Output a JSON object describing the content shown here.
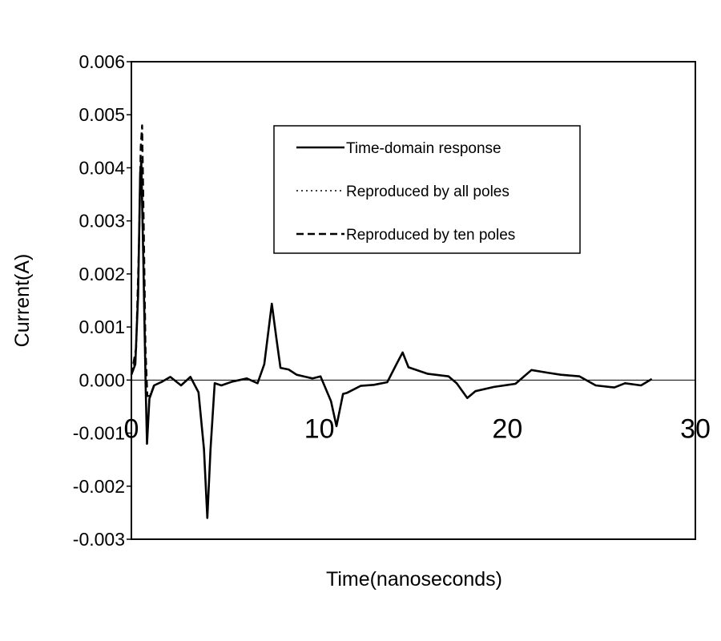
{
  "chart_data": {
    "type": "line",
    "title": "",
    "xlabel": "Time(nanoseconds)",
    "ylabel": "Current(A)",
    "xlim": [
      0,
      30
    ],
    "ylim": [
      -0.003,
      0.006
    ],
    "xticks": [
      "0",
      "10",
      "20",
      "30"
    ],
    "xtick_values": [
      0,
      10,
      20,
      30
    ],
    "yticks": [
      "-0.003",
      "-0.002",
      "-0.001",
      "0.000",
      "0.001",
      "0.002",
      "0.003",
      "0.004",
      "0.005",
      "0.006"
    ],
    "ytick_values": [
      -0.003,
      -0.002,
      -0.001,
      0,
      0.001,
      0.002,
      0.003,
      0.004,
      0.005,
      0.006
    ],
    "grid": false,
    "legend_position": "top-center",
    "series": [
      {
        "name": "Time-domain response",
        "style": "solid",
        "x": [
          0,
          0.21,
          0.36,
          0.47,
          0.53,
          0.64,
          0.76,
          0.83,
          0.96,
          1.21,
          1.64,
          2.07,
          2.64,
          3.14,
          3.57,
          3.86,
          4.04,
          4.21,
          4.43,
          4.79,
          5.36,
          6.14,
          6.71,
          7.07,
          7.47,
          7.71,
          7.93,
          8.36,
          8.79,
          9.64,
          10.06,
          10.62,
          10.91,
          11.26,
          11.48,
          12.19,
          12.9,
          13.61,
          14.1,
          14.43,
          14.74,
          15.74,
          16.87,
          17.3,
          17.87,
          18.3,
          19.29,
          20.43,
          21.28,
          22.13,
          22.84,
          23.84,
          24.7,
          25.69,
          26.26,
          27.11,
          27.68
        ],
        "y": [
          0.0001,
          0.0003,
          0.0016,
          0.0039,
          0.0041,
          0.0022,
          -0.0001,
          -0.0012,
          -0.00035,
          -0.0001,
          -3e-05,
          6e-05,
          -0.0001,
          6e-05,
          -0.00023,
          -0.0013,
          -0.0026,
          -0.0013,
          -6e-05,
          -0.0001,
          -3e-05,
          3e-05,
          -6e-05,
          0.0003,
          0.00144,
          0.0008,
          0.00023,
          0.0002,
          0.0001,
          3e-05,
          7e-05,
          -0.0004,
          -0.00087,
          -0.00026,
          -0.00024,
          -0.00011,
          -9e-05,
          -4e-05,
          0.0003,
          0.00052,
          0.00024,
          0.00012,
          7e-05,
          -6e-05,
          -0.00034,
          -0.00021,
          -0.00013,
          -7e-05,
          0.00019,
          0.00014,
          0.0001,
          7e-05,
          -0.0001,
          -0.00014,
          -6e-05,
          -0.0001,
          2e-05
        ]
      },
      {
        "name": "Reproduced by all poles",
        "style": "dotted",
        "x": [
          0,
          0.21,
          0.36,
          0.47,
          0.53,
          0.64,
          0.76,
          0.83,
          0.96,
          1.21
        ],
        "y": [
          0.0001,
          0.0004,
          0.0018,
          0.004,
          0.0042,
          0.0023,
          0.0,
          -0.0011,
          -0.0003,
          -0.0001
        ]
      },
      {
        "name": "Reproduced by ten poles",
        "style": "dashed",
        "x": [
          0,
          0.25,
          0.4,
          0.5,
          0.57,
          0.66,
          0.75,
          0.85,
          1.0,
          1.2
        ],
        "y": [
          0.0001,
          0.0006,
          0.0025,
          0.0044,
          0.0048,
          0.0028,
          0.0006,
          -0.0003,
          -0.0003,
          -0.0001
        ]
      }
    ]
  }
}
